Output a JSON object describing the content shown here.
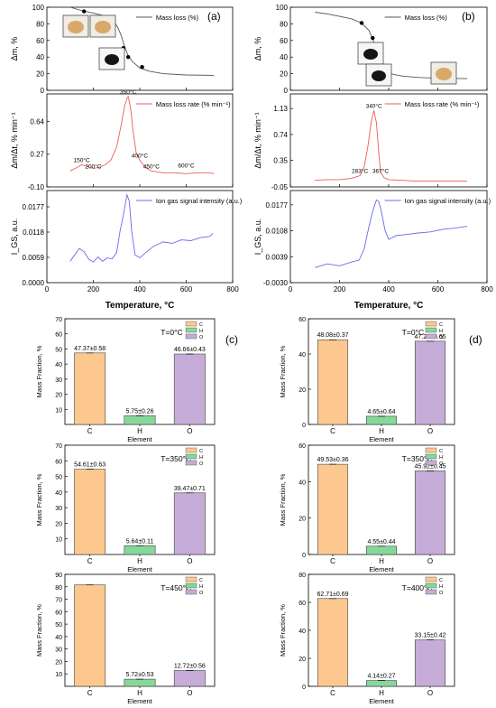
{
  "figure": {
    "panels": {
      "a": "(a)",
      "b": "(b)",
      "c": "(c)",
      "d": "(d)"
    },
    "x_title": "Temperature, °C",
    "x_ticks": [
      "0",
      "200",
      "400",
      "600",
      "800"
    ],
    "mass_ylabel": "Δm, %",
    "rate_ylabel": "Δm/Δt, % min⁻¹",
    "ion_ylabel": "I_GS, a.u.",
    "legend_mass": "Mass loss (%)",
    "legend_rate": "Mass loss rate (% min⁻¹)",
    "legend_ion": "Ion gas signal intensity (a.u.)",
    "bar_ylabel": "Mass Fraction, %",
    "bar_xlabel": "Element",
    "bar_legend": [
      "C",
      "H",
      "O"
    ],
    "colors": {
      "mass": "#555555",
      "rate": "#f05a5a",
      "ion": "#6a6af0",
      "C": "#fdc890",
      "H": "#86d89a",
      "O": "#c6acd8"
    }
  },
  "chart_data": [
    {
      "panel": "a",
      "type": "line",
      "ylabel": "Δm, %",
      "xlim": [
        0,
        800
      ],
      "ylim": [
        0,
        100
      ],
      "y_ticks": [
        "0",
        "20",
        "40",
        "60",
        "80",
        "100"
      ],
      "series": [
        {
          "name": "Mass loss (%)",
          "x": [
            100,
            150,
            200,
            240,
            270,
            290,
            305,
            320,
            335,
            350,
            370,
            400,
            440,
            500,
            600,
            720
          ],
          "y": [
            100,
            96,
            93,
            90,
            86,
            82,
            76,
            66,
            52,
            42,
            34,
            27,
            23,
            20,
            18.5,
            18
          ]
        }
      ],
      "markers": {
        "x": [
          160,
          220,
          285,
          330,
          350,
          410
        ],
        "y": [
          95,
          88,
          75,
          51,
          40,
          28
        ]
      }
    },
    {
      "panel": "a",
      "type": "line",
      "ylabel": "Δm/Δt, % min⁻¹",
      "xlim": [
        0,
        800
      ],
      "ylim": [
        -0.1,
        0.95
      ],
      "y_ticks": [
        "-0.10",
        "0.27",
        "0.64"
      ],
      "series": [
        {
          "name": "Mass loss rate (% min⁻¹)",
          "x": [
            100,
            130,
            150,
            175,
            200,
            225,
            250,
            275,
            300,
            320,
            335,
            345,
            350,
            360,
            370,
            385,
            400,
            425,
            450,
            500,
            550,
            600,
            650,
            700,
            720
          ],
          "y": [
            0.08,
            0.12,
            0.15,
            0.13,
            0.11,
            0.12,
            0.15,
            0.2,
            0.35,
            0.6,
            0.82,
            0.9,
            0.92,
            0.8,
            0.55,
            0.28,
            0.2,
            0.12,
            0.08,
            0.06,
            0.06,
            0.05,
            0.06,
            0.06,
            0.05
          ]
        }
      ],
      "annotations": [
        {
          "text": "150°C",
          "x": 150,
          "y": 0.15
        },
        {
          "text": "200°C",
          "x": 200,
          "y": 0.08
        },
        {
          "text": "350°C",
          "x": 350,
          "y": 0.92
        },
        {
          "text": "400°C",
          "x": 400,
          "y": 0.2
        },
        {
          "text": "450°C",
          "x": 450,
          "y": 0.08
        },
        {
          "text": "600°C",
          "x": 600,
          "y": 0.09
        }
      ]
    },
    {
      "panel": "a",
      "type": "line",
      "ylabel": "I_GS, a.u.",
      "xlim": [
        0,
        800
      ],
      "ylim": [
        0,
        0.0215
      ],
      "y_ticks": [
        "0.0000",
        "0.0059",
        "0.0118",
        "0.0177"
      ],
      "series": [
        {
          "name": "Ion gas signal intensity (a.u.)",
          "x": [
            100,
            120,
            140,
            160,
            180,
            200,
            220,
            240,
            260,
            280,
            300,
            315,
            330,
            345,
            355,
            365,
            380,
            400,
            430,
            460,
            500,
            540,
            580,
            620,
            660,
            700,
            715
          ],
          "y": [
            0.005,
            0.0065,
            0.008,
            0.0072,
            0.0055,
            0.0048,
            0.006,
            0.005,
            0.0058,
            0.0055,
            0.007,
            0.012,
            0.016,
            0.0205,
            0.019,
            0.012,
            0.0065,
            0.0058,
            0.0072,
            0.0085,
            0.0095,
            0.0092,
            0.01,
            0.0098,
            0.0105,
            0.0108,
            0.0115
          ]
        }
      ]
    },
    {
      "panel": "b",
      "type": "line",
      "ylabel": "Δm, %",
      "xlim": [
        0,
        800
      ],
      "ylim": [
        0,
        100
      ],
      "y_ticks": [
        "0",
        "20",
        "40",
        "60",
        "80",
        "100"
      ],
      "series": [
        {
          "name": "Mass loss (%)",
          "x": [
            100,
            150,
            200,
            250,
            290,
            320,
            340,
            355,
            370,
            390,
            420,
            460,
            520,
            600,
            720
          ],
          "y": [
            94,
            92,
            89,
            86,
            81,
            72,
            58,
            42,
            30,
            23,
            19,
            17,
            15.5,
            14.5,
            14
          ]
        }
      ],
      "markers": {
        "x": [
          290,
          335,
          360,
          400
        ],
        "y": [
          81,
          63,
          40,
          22
        ]
      }
    },
    {
      "panel": "b",
      "type": "line",
      "ylabel": "Δm/Δt, % min⁻¹",
      "xlim": [
        0,
        800
      ],
      "ylim": [
        -0.05,
        1.35
      ],
      "y_ticks": [
        "-0.05",
        "0.35",
        "0.74",
        "1.13"
      ],
      "series": [
        {
          "name": "Mass loss rate (% min⁻¹)",
          "x": [
            100,
            150,
            200,
            250,
            283,
            300,
            315,
            330,
            340,
            350,
            360,
            367,
            380,
            400,
            450,
            500,
            600,
            700,
            720
          ],
          "y": [
            0.05,
            0.06,
            0.06,
            0.08,
            0.12,
            0.25,
            0.55,
            0.95,
            1.1,
            0.92,
            0.45,
            0.18,
            0.09,
            0.06,
            0.05,
            0.04,
            0.04,
            0.04,
            0.04
          ]
        }
      ],
      "annotations": [
        {
          "text": "283°C",
          "x": 283,
          "y": 0.12
        },
        {
          "text": "340°C",
          "x": 340,
          "y": 1.1
        },
        {
          "text": "367°C",
          "x": 367,
          "y": 0.12
        }
      ]
    },
    {
      "panel": "b",
      "type": "line",
      "ylabel": "I_GS, a.u.",
      "xlim": [
        0,
        800
      ],
      "ylim": [
        -0.003,
        0.0215
      ],
      "y_ticks": [
        "-0.0030",
        "0.0039",
        "0.0108",
        "0.0177"
      ],
      "series": [
        {
          "name": "Ion gas signal intensity (a.u.)",
          "x": [
            100,
            150,
            200,
            250,
            280,
            300,
            320,
            335,
            350,
            360,
            370,
            385,
            400,
            430,
            470,
            520,
            570,
            620,
            670,
            720
          ],
          "y": [
            0.001,
            0.002,
            0.0015,
            0.0025,
            0.003,
            0.006,
            0.012,
            0.016,
            0.019,
            0.0185,
            0.016,
            0.011,
            0.0085,
            0.0095,
            0.0098,
            0.0102,
            0.0105,
            0.0112,
            0.0115,
            0.012
          ]
        }
      ]
    },
    {
      "panel": "c",
      "type": "bar",
      "title": "T=0°C",
      "ylim": [
        0,
        70
      ],
      "y_ticks": [
        "10",
        "20",
        "30",
        "40",
        "50",
        "60",
        "70"
      ],
      "categories": [
        "C",
        "H",
        "O"
      ],
      "values": [
        47.37,
        5.75,
        46.66
      ],
      "labels": [
        "47.37±0.58",
        "5.75±0.26",
        "46.66±0.43"
      ]
    },
    {
      "panel": "c",
      "type": "bar",
      "title": "T=350°C",
      "ylim": [
        0,
        70
      ],
      "y_ticks": [
        "10",
        "20",
        "30",
        "40",
        "50",
        "60",
        "70"
      ],
      "categories": [
        "C",
        "H",
        "O"
      ],
      "values": [
        54.61,
        5.64,
        39.47
      ],
      "labels": [
        "54.61±0.63",
        "5.64±0.11",
        "39.47±0.71"
      ]
    },
    {
      "panel": "c",
      "type": "bar",
      "title": "T=450°C",
      "ylim": [
        0,
        90
      ],
      "y_ticks": [
        "10",
        "20",
        "30",
        "40",
        "50",
        "60",
        "70",
        "80",
        "90"
      ],
      "categories": [
        "C",
        "H",
        "O"
      ],
      "values": [
        81.5,
        5.72,
        12.72
      ],
      "labels": [
        "",
        "5.72±0.53",
        "12.72±0.56"
      ]
    },
    {
      "panel": "d",
      "type": "bar",
      "title": "T=0°C",
      "ylim": [
        0,
        60
      ],
      "y_ticks": [
        "0",
        "20",
        "40",
        "60"
      ],
      "categories": [
        "C",
        "H",
        "O"
      ],
      "values": [
        48.08,
        4.65,
        47.27
      ],
      "labels": [
        "48.08±0.37",
        "4.65±0.64",
        "47.27±0.65"
      ]
    },
    {
      "panel": "d",
      "type": "bar",
      "title": "T=350°C",
      "ylim": [
        0,
        60
      ],
      "y_ticks": [
        "0",
        "20",
        "40",
        "60"
      ],
      "categories": [
        "C",
        "H",
        "O"
      ],
      "values": [
        49.53,
        4.55,
        45.92
      ],
      "labels": [
        "49.53±0.36",
        "4.55±0.44",
        "45.92±0.45"
      ]
    },
    {
      "panel": "d",
      "type": "bar",
      "title": "T=400°C",
      "ylim": [
        0,
        80
      ],
      "y_ticks": [
        "0",
        "20",
        "40",
        "60",
        "80"
      ],
      "categories": [
        "C",
        "H",
        "O"
      ],
      "values": [
        62.71,
        4.14,
        33.15
      ],
      "labels": [
        "62.71±0.69",
        "4.14±0.27",
        "33.15±0.42"
      ]
    }
  ]
}
